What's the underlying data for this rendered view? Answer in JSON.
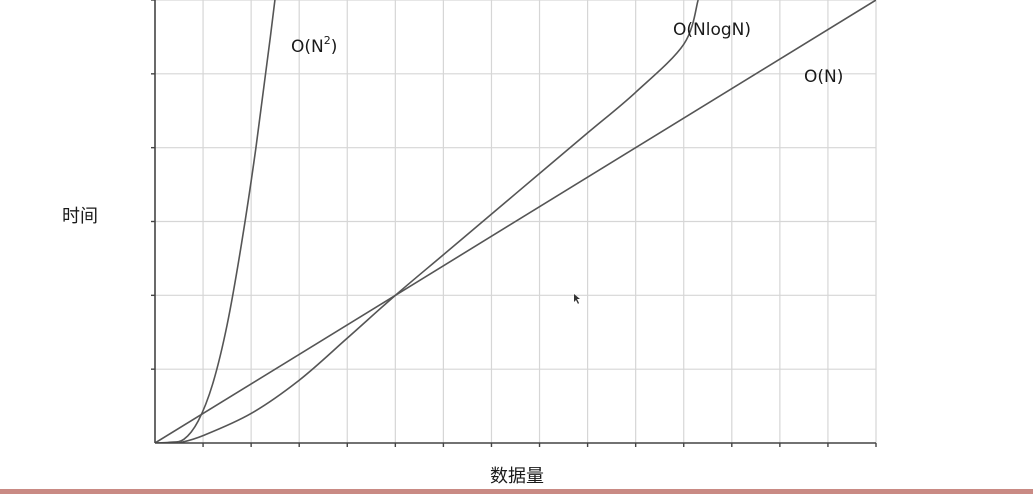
{
  "chart_data": {
    "type": "line",
    "xlabel": "数据量",
    "ylabel": "时间",
    "xlim": [
      0,
      15
    ],
    "ylim": [
      0,
      6
    ],
    "grid": true,
    "series": [
      {
        "name": "O(N²)",
        "label_main": "O(N",
        "label_sup": "2",
        "label_close": ")",
        "x": [
          0,
          0.3,
          0.6,
          0.9,
          1.2,
          1.5,
          1.8,
          2.1,
          2.4,
          2.7
        ],
        "y": [
          0,
          0.01,
          0.05,
          0.3,
          0.8,
          1.6,
          2.7,
          4.0,
          5.5,
          7.1
        ]
      },
      {
        "name": "O(NlogN)",
        "label_main": "O(NlogN)",
        "x": [
          0.5,
          1,
          2,
          3,
          4,
          5,
          6,
          7,
          8,
          9,
          10,
          11,
          11.3
        ],
        "y": [
          0,
          0.1,
          0.4,
          0.85,
          1.42,
          2.0,
          2.55,
          3.1,
          3.65,
          4.2,
          4.75,
          5.4,
          6.0
        ]
      },
      {
        "name": "O(N)",
        "label_main": "O(N)",
        "x": [
          0,
          15
        ],
        "y": [
          0,
          6
        ]
      }
    ]
  }
}
